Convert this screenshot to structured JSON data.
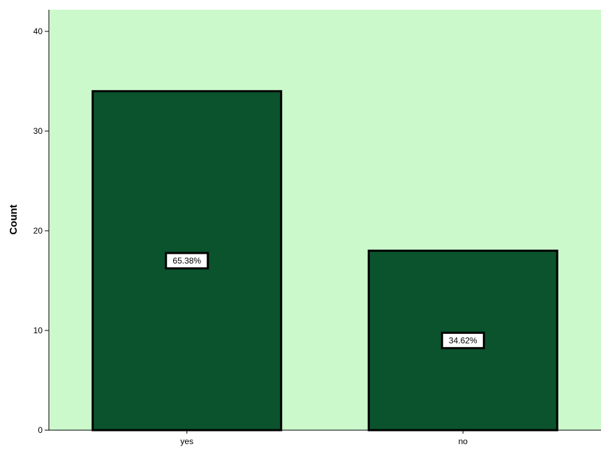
{
  "chart_data": {
    "type": "bar",
    "categories": [
      "yes",
      "no"
    ],
    "values": [
      34,
      18
    ],
    "data_labels": [
      "65.38%",
      "34.62%"
    ],
    "title": "",
    "xlabel": "",
    "ylabel": "Count",
    "ylim": [
      0,
      42
    ],
    "yticks": [
      0,
      10,
      20,
      30,
      40
    ],
    "ytick_labels": [
      "0",
      "10",
      "20",
      "30",
      "40"
    ],
    "grid": false,
    "legend": "none",
    "colors": {
      "plot_background": "#ccf9cc",
      "bar_fill": "#0b532c",
      "bar_stroke": "#000000",
      "label_box_fill": "#ffffff"
    }
  }
}
